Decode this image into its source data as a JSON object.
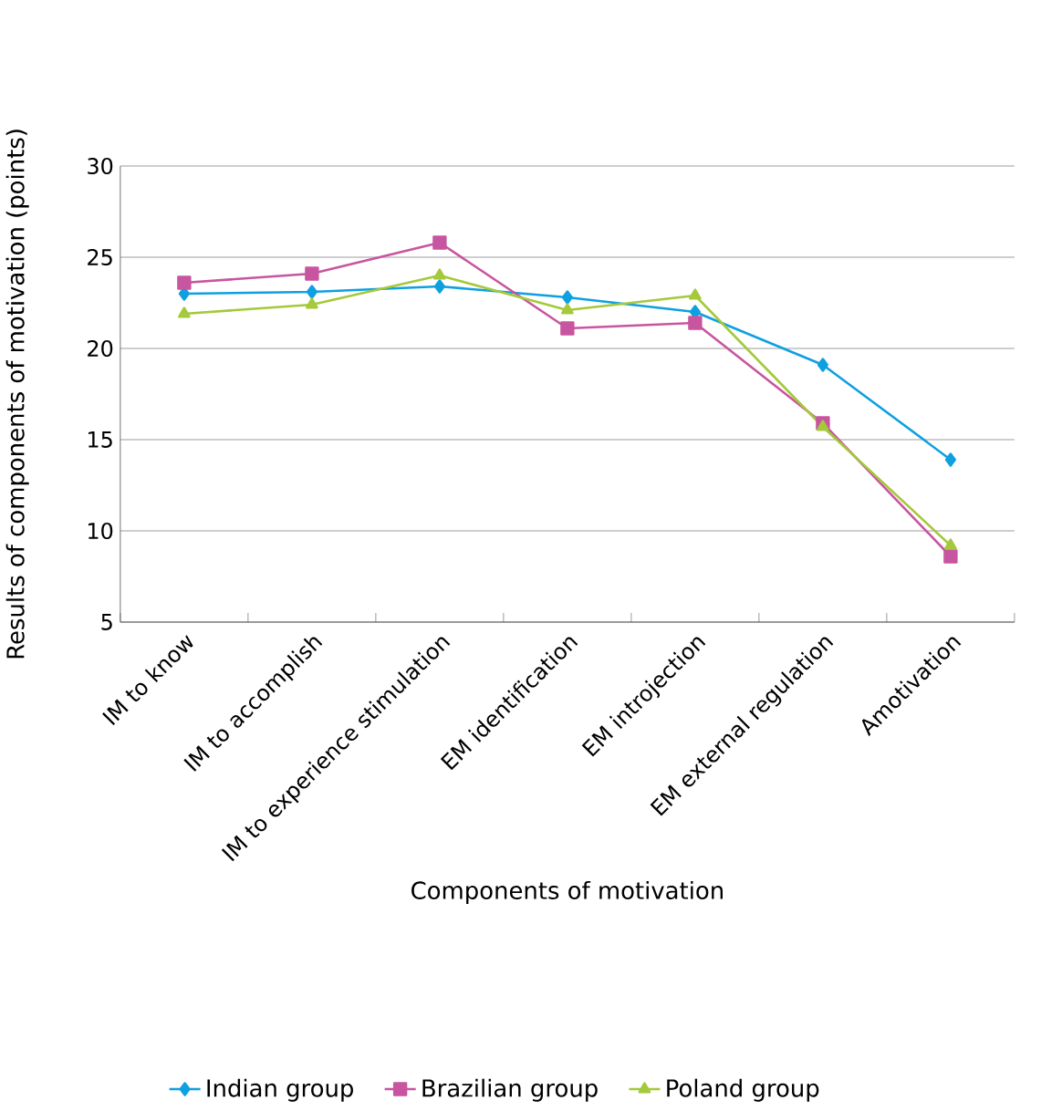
{
  "chart_data": {
    "type": "line",
    "xlabel": "Components of motivation",
    "ylabel": "Results of components of motivation (points)",
    "categories": [
      "IM to know",
      "IM to accomplish",
      "IM to experience stimulation",
      "EM identification",
      "EM introjection",
      "EM external regulation",
      "Amotivation"
    ],
    "series": [
      {
        "name": "Indian group",
        "color": "#0ea0e0",
        "marker": "diamond",
        "values": [
          23.0,
          23.1,
          23.4,
          22.8,
          22.0,
          19.1,
          13.9
        ]
      },
      {
        "name": "Brazilian group",
        "color": "#c8559f",
        "marker": "square",
        "values": [
          23.6,
          24.1,
          25.8,
          21.1,
          21.4,
          15.9,
          8.6
        ]
      },
      {
        "name": "Poland group",
        "color": "#a4c93b",
        "marker": "triangle",
        "values": [
          21.9,
          22.4,
          24.0,
          22.1,
          22.9,
          15.7,
          9.2
        ]
      }
    ],
    "ylim": [
      5,
      30
    ],
    "yticks": [
      5,
      10,
      15,
      20,
      25,
      30
    ],
    "grid": "y",
    "legend": "bottom",
    "line_style": "solid"
  }
}
